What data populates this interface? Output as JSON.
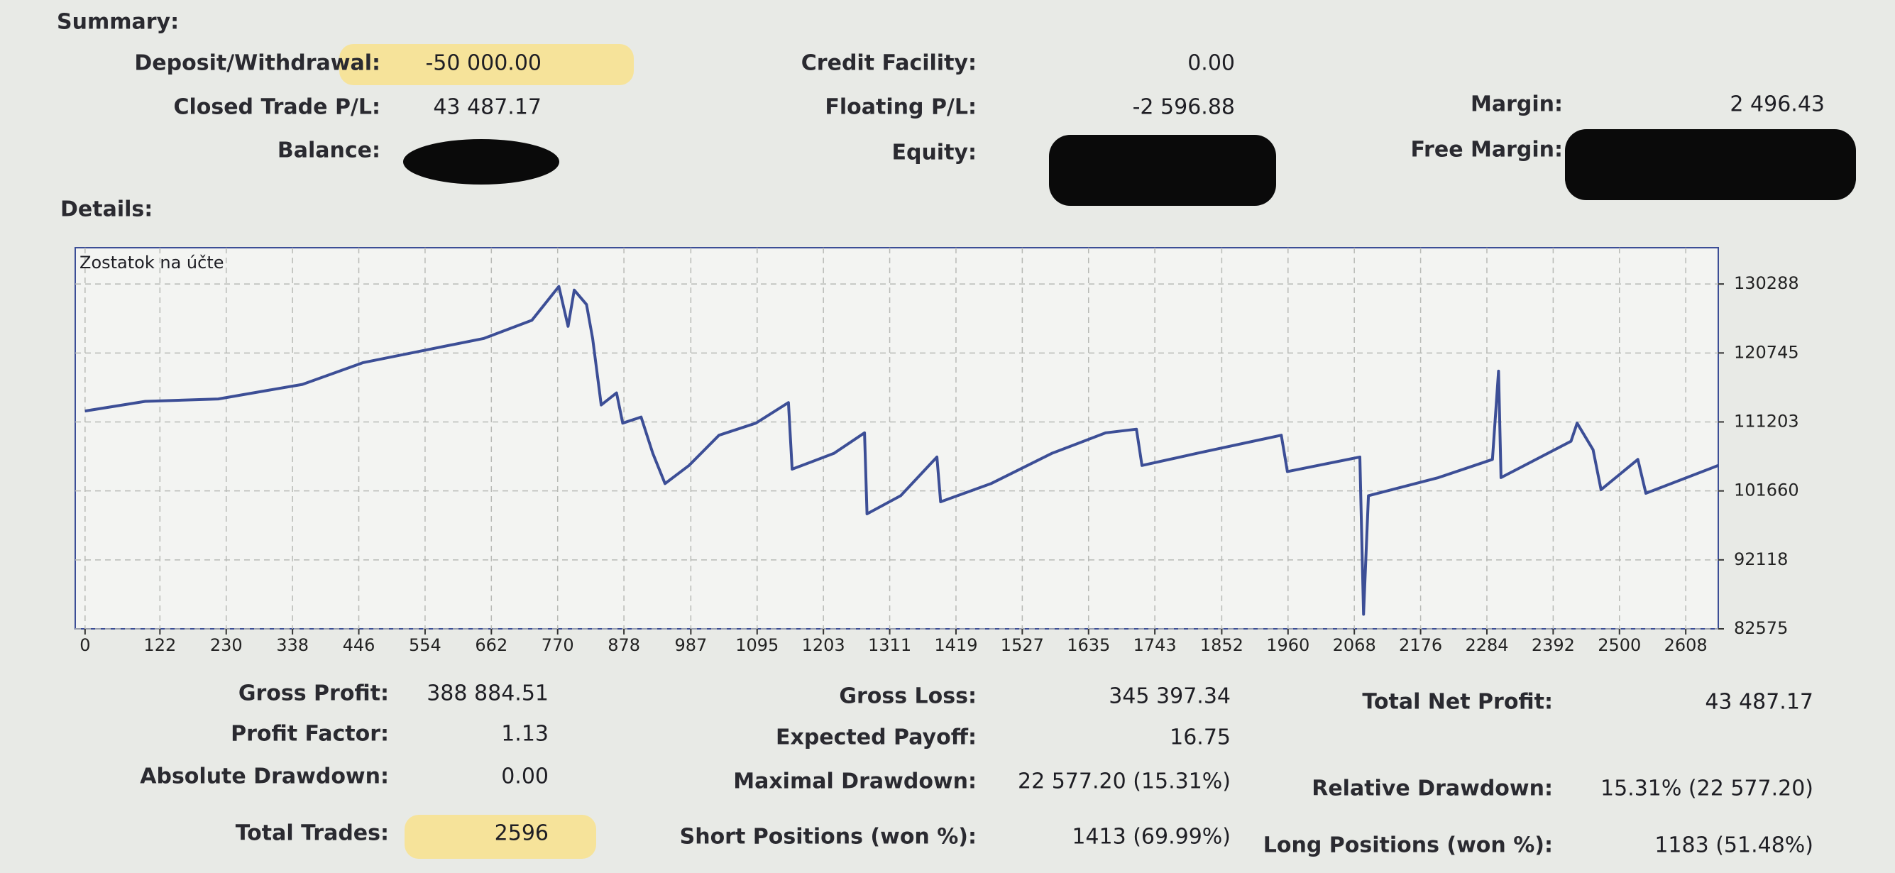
{
  "summary": {
    "title": "Summary:",
    "items": [
      {
        "label": "Deposit/Withdrawal:",
        "value": "-50 000.00"
      },
      {
        "label": "Credit Facility:",
        "value": "0.00"
      },
      {
        "label": "Closed Trade P/L:",
        "value": "43 487.17"
      },
      {
        "label": "Floating P/L:",
        "value": "-2 596.88"
      },
      {
        "label": "Margin:",
        "value": "2 496.43"
      },
      {
        "label": "Balance:"
      },
      {
        "label": "Equity:"
      },
      {
        "label": "Free Margin:"
      }
    ]
  },
  "details": {
    "title": "Details:"
  },
  "chart_data": {
    "type": "line",
    "x": [
      0,
      98,
      217,
      354,
      453,
      551,
      650,
      728,
      772,
      787,
      797,
      817,
      827,
      841,
      866,
      876,
      906,
      925,
      945,
      984,
      1033,
      1093,
      1146,
      1152,
      1220,
      1270,
      1274,
      1329,
      1388,
      1394,
      1476,
      1575,
      1663,
      1713,
      1722,
      1811,
      1949,
      1959,
      2077,
      2083,
      2091,
      2205,
      2293,
      2303,
      2307,
      2421,
      2431,
      2457,
      2470,
      2530,
      2543,
      2661
    ],
    "series": [
      {
        "name": "Zostatok na účte",
        "color": "#3c4e96",
        "values": [
          112711,
          114050,
          114385,
          116394,
          119407,
          121081,
          122755,
          125266,
          129953,
          124429,
          129451,
          127442,
          122755,
          113548,
          115222,
          111037,
          111874,
          106852,
          102667,
          105178,
          109363,
          111037,
          113883,
          104675,
          106852,
          109698,
          98483,
          100994,
          106350,
          100157,
          102667,
          106852,
          109698,
          110200,
          105178,
          106852,
          109363,
          104340,
          106350,
          84587,
          100994,
          103504,
          106015,
          118234,
          103504,
          108526,
          111037,
          107354,
          101832,
          106015,
          101329,
          105178
        ]
      }
    ],
    "xlim": [
      -16,
      2661
    ],
    "ylim": [
      82575,
      135310
    ],
    "xticks": [
      0,
      122,
      230,
      338,
      446,
      554,
      662,
      770,
      878,
      987,
      1095,
      1203,
      1311,
      1419,
      1527,
      1635,
      1743,
      1852,
      1960,
      2068,
      2176,
      2284,
      2392,
      2500,
      2608
    ],
    "yticks": [
      130288,
      120745,
      111203,
      101660,
      92118,
      82575
    ],
    "grid": true
  },
  "stats": {
    "items": [
      {
        "label": "Gross Profit:",
        "value": "388 884.51"
      },
      {
        "label": "Gross Loss:",
        "value": "345 397.34"
      },
      {
        "label": "Total Net Profit:",
        "value": "43 487.17"
      },
      {
        "label": "Profit Factor:",
        "value": "1.13"
      },
      {
        "label": "Expected Payoff:",
        "value": "16.75"
      },
      {
        "label": "Absolute Drawdown:",
        "value": "0.00"
      },
      {
        "label": "Maximal Drawdown:",
        "value": "22 577.20 (15.31%)"
      },
      {
        "label": "Relative Drawdown:",
        "value": "15.31% (22 577.20)"
      },
      {
        "label": "Total Trades:",
        "value": "2596"
      },
      {
        "label": "Short Positions (won %):",
        "value": "1413 (69.99%)"
      },
      {
        "label": "Long Positions (won %):",
        "value": "1183 (51.48%)"
      }
    ]
  }
}
